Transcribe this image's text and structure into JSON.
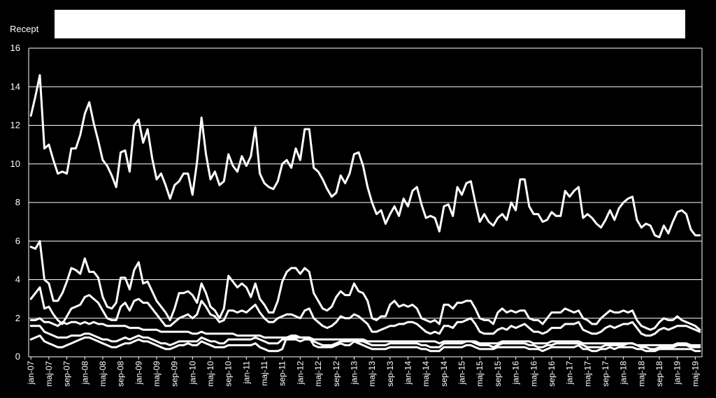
{
  "chart_data": {
    "type": "line",
    "ylabel": "Recept",
    "ylim": [
      0,
      16
    ],
    "yticks": [
      0,
      2,
      4,
      6,
      8,
      10,
      12,
      14,
      16
    ],
    "grid": "horizontal",
    "legend": "top (blank white box)",
    "x_tick_labels": [
      "jan-07",
      "maj-07",
      "sep-07",
      "jan-08",
      "maj-08",
      "sep-08",
      "jan-09",
      "maj-09",
      "sep-09",
      "jan-10",
      "maj-10",
      "sep-10",
      "jan-11",
      "maj-11",
      "sep-11",
      "jan-12",
      "maj-12",
      "sep-12",
      "jan-13",
      "maj-13",
      "sep-13",
      "jan-14",
      "maj-14",
      "sep-14",
      "jan-15",
      "maj-15",
      "sep-15",
      "jan-16",
      "maj-16",
      "sep-16",
      "jan-17",
      "maj-17",
      "sep-17",
      "jan-18",
      "maj-18",
      "sep-18",
      "jan-19",
      "maj-19"
    ],
    "series": [
      {
        "values": [
          12.5,
          13.5,
          14.6,
          10.8,
          11.0,
          10.2,
          9.5,
          9.6,
          9.5,
          10.8,
          10.8,
          11.5,
          12.6,
          13.2,
          12.1,
          11.2,
          10.2,
          9.9,
          9.4,
          8.8,
          10.6,
          10.7,
          9.6,
          12.0,
          12.3,
          11.1,
          11.8,
          10.3,
          9.2,
          9.5,
          8.9,
          8.2,
          8.9,
          9.1,
          9.5,
          9.5,
          8.4,
          10.1,
          12.4,
          10.5,
          9.2,
          9.6,
          8.9,
          9.1,
          10.5,
          9.9,
          9.6,
          10.4,
          9.9,
          10.4,
          11.9,
          9.5,
          9.0,
          8.8,
          8.7,
          9.1,
          10.0,
          10.2,
          9.8,
          10.8,
          10.2,
          11.8,
          11.8,
          9.8,
          9.6,
          9.2,
          8.7,
          8.3,
          8.5,
          9.4,
          9.0,
          9.5,
          10.5,
          10.6,
          9.9,
          8.8,
          8.0,
          7.4,
          7.6,
          6.9,
          7.4,
          7.8,
          7.3,
          8.2,
          7.8,
          8.6,
          8.8,
          7.9,
          7.2,
          7.3,
          7.2,
          6.5,
          7.8,
          7.9,
          7.3,
          8.8,
          8.4,
          9.0,
          9.1,
          8.0,
          7.0,
          7.4,
          7.0,
          6.8,
          7.2,
          7.4,
          7.1,
          8.0,
          7.6,
          9.2,
          9.2,
          7.8,
          7.4,
          7.4,
          7.0,
          7.1,
          7.5,
          7.3,
          7.3,
          8.6,
          8.3,
          8.6,
          8.8,
          7.2,
          7.4,
          7.2,
          6.9,
          6.7,
          7.1,
          7.6,
          7.1,
          7.7,
          8.0,
          8.2,
          8.3,
          7.1,
          6.7,
          6.9,
          6.8,
          6.3,
          6.2,
          6.8,
          6.4,
          7.0,
          7.5,
          7.6,
          7.4,
          6.6,
          6.3,
          6.3
        ]
      },
      {
        "values": [
          5.7,
          5.6,
          6.0,
          4.0,
          3.8,
          2.9,
          2.9,
          3.3,
          3.9,
          4.6,
          4.5,
          4.3,
          5.1,
          4.4,
          4.4,
          4.1,
          3.1,
          2.6,
          2.5,
          2.8,
          4.1,
          4.1,
          3.5,
          4.5,
          4.9,
          3.8,
          3.9,
          3.4,
          2.9,
          2.6,
          2.3,
          1.9,
          2.5,
          3.3,
          3.3,
          3.4,
          3.2,
          2.8,
          3.8,
          3.3,
          2.6,
          2.4,
          2.0,
          2.5,
          4.2,
          3.9,
          3.6,
          3.8,
          3.6,
          3.1,
          3.8,
          3.0,
          2.7,
          2.3,
          2.3,
          2.9,
          3.9,
          4.4,
          4.6,
          4.6,
          4.3,
          4.6,
          4.4,
          3.3,
          2.9,
          2.5,
          2.4,
          2.6,
          3.1,
          3.4,
          3.2,
          3.2,
          3.8,
          3.4,
          3.3,
          2.9,
          2.0,
          1.9,
          2.1,
          2.1,
          2.7,
          2.9,
          2.6,
          2.7,
          2.6,
          2.7,
          2.5,
          2.0,
          1.9,
          1.8,
          1.9,
          1.7,
          2.7,
          2.7,
          2.5,
          2.8,
          2.8,
          2.9,
          2.9,
          2.5,
          2.0,
          1.9,
          1.9,
          1.7,
          2.3,
          2.5,
          2.3,
          2.4,
          2.3,
          2.4,
          2.4,
          2.0,
          1.9,
          1.9,
          1.7,
          2.0,
          2.3,
          2.3,
          2.3,
          2.5,
          2.4,
          2.3,
          2.4,
          2.0,
          1.9,
          1.7,
          1.7,
          2.0,
          2.2,
          2.4,
          2.3,
          2.3,
          2.4,
          2.3,
          2.4,
          1.9,
          1.6,
          1.5,
          1.4,
          1.5,
          1.8,
          2.0,
          1.9,
          1.9,
          2.1,
          1.9,
          1.8,
          1.7,
          1.6,
          1.4
        ]
      },
      {
        "values": [
          3.0,
          3.3,
          3.6,
          2.5,
          2.6,
          2.2,
          1.9,
          1.7,
          2.1,
          2.5,
          2.6,
          2.7,
          3.1,
          3.2,
          3.0,
          2.8,
          2.4,
          2.0,
          1.9,
          1.9,
          2.6,
          2.8,
          2.4,
          2.9,
          3.0,
          2.8,
          2.8,
          2.5,
          2.2,
          1.9,
          1.6,
          1.6,
          1.8,
          2.0,
          2.1,
          2.2,
          2.0,
          2.2,
          2.9,
          2.6,
          2.2,
          2.1,
          1.8,
          1.9,
          2.4,
          2.4,
          2.3,
          2.4,
          2.3,
          2.5,
          2.7,
          2.3,
          2.0,
          1.8,
          1.8,
          2.0,
          2.1,
          2.2,
          2.2,
          2.1,
          2.0,
          2.4,
          2.5,
          2.0,
          1.8,
          1.6,
          1.5,
          1.6,
          1.8,
          2.1,
          2.0,
          2.0,
          2.2,
          2.1,
          1.9,
          1.7,
          1.3,
          1.3,
          1.4,
          1.5,
          1.6,
          1.6,
          1.7,
          1.7,
          1.8,
          1.8,
          1.7,
          1.5,
          1.3,
          1.2,
          1.3,
          1.2,
          1.6,
          1.6,
          1.5,
          1.8,
          1.8,
          1.9,
          2.0,
          1.7,
          1.3,
          1.2,
          1.2,
          1.2,
          1.4,
          1.5,
          1.4,
          1.6,
          1.5,
          1.6,
          1.7,
          1.5,
          1.3,
          1.3,
          1.2,
          1.3,
          1.5,
          1.5,
          1.5,
          1.7,
          1.7,
          1.7,
          1.8,
          1.4,
          1.3,
          1.2,
          1.2,
          1.3,
          1.5,
          1.6,
          1.5,
          1.6,
          1.7,
          1.7,
          1.8,
          1.5,
          1.2,
          1.1,
          1.1,
          1.2,
          1.4,
          1.5,
          1.4,
          1.5,
          1.6,
          1.6,
          1.6,
          1.5,
          1.4,
          1.3
        ]
      },
      {
        "values": [
          1.9,
          1.9,
          2.0,
          1.8,
          1.8,
          1.7,
          1.6,
          1.8,
          1.7,
          1.8,
          1.8,
          1.7,
          1.8,
          1.7,
          1.8,
          1.7,
          1.7,
          1.6,
          1.6,
          1.6,
          1.6,
          1.6,
          1.5,
          1.5,
          1.5,
          1.4,
          1.4,
          1.4,
          1.4,
          1.3,
          1.3,
          1.3,
          1.3,
          1.3,
          1.3,
          1.3,
          1.2,
          1.2,
          1.3,
          1.2,
          1.2,
          1.2,
          1.2,
          1.2,
          1.2,
          1.2,
          1.1,
          1.1,
          1.1,
          1.1,
          1.1,
          1.1,
          1.0,
          1.0,
          1.0,
          1.0,
          1.0,
          1.0,
          1.0,
          1.0,
          1.0,
          1.0,
          1.0,
          0.9,
          0.9,
          0.9,
          0.9,
          0.9,
          0.9,
          0.9,
          0.9,
          0.9,
          0.9,
          0.9,
          0.9,
          0.8,
          0.8,
          0.8,
          0.8,
          0.8,
          0.8,
          0.8,
          0.8,
          0.8,
          0.8,
          0.8,
          0.8,
          0.8,
          0.8,
          0.8,
          0.8,
          0.7,
          0.8,
          0.8,
          0.8,
          0.8,
          0.8,
          0.8,
          0.8,
          0.8,
          0.7,
          0.7,
          0.7,
          0.7,
          0.7,
          0.8,
          0.8,
          0.8,
          0.8,
          0.8,
          0.8,
          0.8,
          0.7,
          0.7,
          0.7,
          0.7,
          0.8,
          0.8,
          0.8,
          0.8,
          0.8,
          0.8,
          0.8,
          0.7,
          0.7,
          0.7,
          0.7,
          0.7,
          0.7,
          0.7,
          0.7,
          0.7,
          0.7,
          0.7,
          0.7,
          0.6,
          0.6,
          0.6,
          0.6,
          0.6,
          0.6,
          0.6,
          0.6,
          0.6,
          0.7,
          0.7,
          0.7,
          0.6,
          0.6,
          0.6
        ]
      },
      {
        "values": [
          1.6,
          1.6,
          1.6,
          1.3,
          1.2,
          1.1,
          1.0,
          1.0,
          1.0,
          1.1,
          1.1,
          1.1,
          1.2,
          1.2,
          1.1,
          1.0,
          0.9,
          0.9,
          0.8,
          0.8,
          0.9,
          1.0,
          0.9,
          1.0,
          1.1,
          1.0,
          1.0,
          0.9,
          0.8,
          0.7,
          0.7,
          0.6,
          0.7,
          0.8,
          0.8,
          0.8,
          0.8,
          0.8,
          1.0,
          0.9,
          0.8,
          0.8,
          0.7,
          0.7,
          0.9,
          0.9,
          0.9,
          0.9,
          0.9,
          0.9,
          1.0,
          0.9,
          0.8,
          0.7,
          0.7,
          0.7,
          0.9,
          0.9,
          0.9,
          0.9,
          0.8,
          0.9,
          0.9,
          0.8,
          0.7,
          0.6,
          0.6,
          0.6,
          0.7,
          0.8,
          0.8,
          0.8,
          0.9,
          0.8,
          0.8,
          0.7,
          0.6,
          0.6,
          0.6,
          0.6,
          0.7,
          0.7,
          0.7,
          0.7,
          0.7,
          0.7,
          0.7,
          0.6,
          0.6,
          0.5,
          0.5,
          0.5,
          0.7,
          0.7,
          0.7,
          0.7,
          0.7,
          0.8,
          0.8,
          0.7,
          0.6,
          0.6,
          0.6,
          0.5,
          0.6,
          0.7,
          0.7,
          0.7,
          0.7,
          0.7,
          0.7,
          0.6,
          0.6,
          0.5,
          0.5,
          0.6,
          0.6,
          0.7,
          0.7,
          0.7,
          0.7,
          0.7,
          0.7,
          0.6,
          0.5,
          0.5,
          0.5,
          0.5,
          0.6,
          0.6,
          0.6,
          0.6,
          0.6,
          0.7,
          0.7,
          0.6,
          0.5,
          0.5,
          0.4,
          0.4,
          0.5,
          0.5,
          0.5,
          0.5,
          0.6,
          0.6,
          0.6,
          0.5,
          0.5,
          0.5
        ]
      },
      {
        "values": [
          0.9,
          1.0,
          1.1,
          0.8,
          0.7,
          0.6,
          0.5,
          0.5,
          0.6,
          0.7,
          0.8,
          0.9,
          1.0,
          1.0,
          0.9,
          0.8,
          0.7,
          0.6,
          0.5,
          0.5,
          0.6,
          0.7,
          0.7,
          0.8,
          0.9,
          0.8,
          0.8,
          0.7,
          0.6,
          0.5,
          0.4,
          0.4,
          0.5,
          0.6,
          0.6,
          0.7,
          0.6,
          0.6,
          0.8,
          0.7,
          0.6,
          0.5,
          0.5,
          0.5,
          0.6,
          0.6,
          0.6,
          0.6,
          0.6,
          0.6,
          0.7,
          0.5,
          0.4,
          0.3,
          0.3,
          0.3,
          0.4,
          1.0,
          1.1,
          1.1,
          1.0,
          1.0,
          1.0,
          0.6,
          0.5,
          0.5,
          0.5,
          0.5,
          0.6,
          0.7,
          0.6,
          0.6,
          0.8,
          0.7,
          0.6,
          0.5,
          0.4,
          0.4,
          0.4,
          0.4,
          0.5,
          0.5,
          0.5,
          0.5,
          0.5,
          0.5,
          0.5,
          0.4,
          0.4,
          0.3,
          0.3,
          0.3,
          0.5,
          0.5,
          0.5,
          0.5,
          0.5,
          0.6,
          0.6,
          0.5,
          0.4,
          0.4,
          0.4,
          0.4,
          0.5,
          0.5,
          0.5,
          0.5,
          0.5,
          0.5,
          0.5,
          0.4,
          0.4,
          0.4,
          0.3,
          0.4,
          0.5,
          0.5,
          0.5,
          0.5,
          0.5,
          0.5,
          0.6,
          0.4,
          0.4,
          0.3,
          0.3,
          0.4,
          0.4,
          0.5,
          0.4,
          0.5,
          0.5,
          0.5,
          0.5,
          0.4,
          0.4,
          0.3,
          0.3,
          0.3,
          0.4,
          0.4,
          0.4,
          0.4,
          0.4,
          0.4,
          0.4,
          0.4,
          0.3,
          0.3
        ]
      }
    ]
  }
}
